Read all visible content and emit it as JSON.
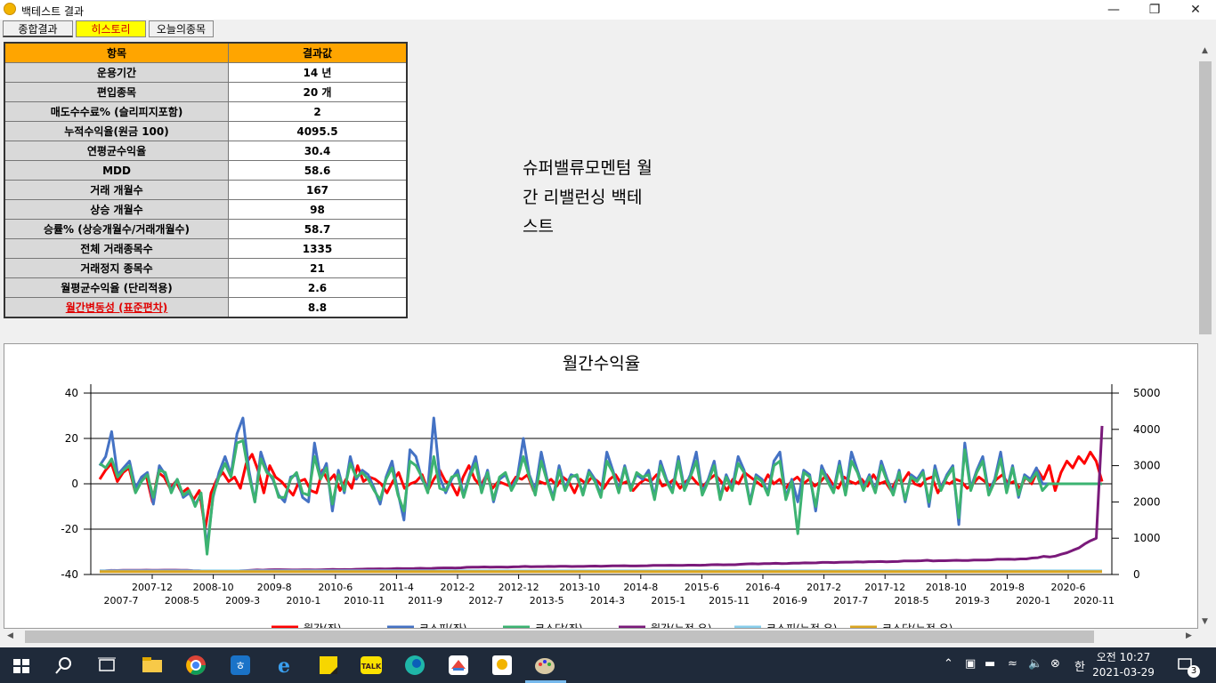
{
  "window": {
    "title": "백테스트 결과"
  },
  "tabs": [
    {
      "label": "종합결과"
    },
    {
      "label": "히스토리"
    },
    {
      "label": "오늘의종목"
    }
  ],
  "summary_table": {
    "headers": [
      "항목",
      "결과값"
    ],
    "rows": [
      {
        "key": "운용기간",
        "value": "14 년"
      },
      {
        "key": "편입종목",
        "value": "20 개"
      },
      {
        "key": "매도수수료% (슬리피지포함)",
        "value": "2"
      },
      {
        "key": "누적수익율(원금 100)",
        "value": "4095.5"
      },
      {
        "key": "연평균수익율",
        "value": "30.4"
      },
      {
        "key": "MDD",
        "value": "58.6"
      },
      {
        "key": "거래 개월수",
        "value": "167"
      },
      {
        "key": "상승 개월수",
        "value": "98"
      },
      {
        "key": "승률% (상승개월수/거래개월수)",
        "value": "58.7"
      },
      {
        "key": "전체 거래종목수",
        "value": "1335"
      },
      {
        "key": "거래정지 종목수",
        "value": "21"
      },
      {
        "key": "월평균수익율 (단리적용)",
        "value": "2.6"
      },
      {
        "key": "월간변동성 (표준편차)",
        "value": "8.8"
      }
    ]
  },
  "description": [
    "슈퍼밸류모멘텀 월",
    "간 리밸런싱 백테",
    "스트"
  ],
  "chart_data": {
    "type": "line",
    "title": "월간수익율",
    "ylim_left": [
      -40,
      40
    ],
    "ylim_right": [
      0,
      5000
    ],
    "left_ticks": [
      "40",
      "20",
      "0",
      "-20",
      "-40"
    ],
    "right_ticks": [
      "5000",
      "4000",
      "3000",
      "2000",
      "1000",
      "0"
    ],
    "x_labels_row1": [
      "2007-12",
      "2008-10",
      "2009-8",
      "2010-6",
      "2011-4",
      "2012-2",
      "2012-12",
      "2013-10",
      "2014-8",
      "2015-6",
      "2016-4",
      "2017-2",
      "2017-12",
      "2018-10",
      "2019-8",
      "2020-6"
    ],
    "x_labels_row2": [
      "2007-7",
      "2008-5",
      "2009-3",
      "2010-1",
      "2010-11",
      "2011-9",
      "2012-7",
      "2013-5",
      "2014-3",
      "2015-1",
      "2015-11",
      "2016-9",
      "2017-7",
      "2018-5",
      "2019-3",
      "2020-1",
      "2020-11"
    ],
    "grid": true,
    "legend_position": "bottom",
    "series": [
      {
        "name": "월간(좌)",
        "axis": "left",
        "color": "#ff0000",
        "values": [
          2,
          6,
          9,
          1,
          5,
          7,
          -3,
          2,
          3,
          -8,
          5,
          3,
          -2,
          1,
          -4,
          -2,
          -7,
          -3,
          -20,
          -4,
          2,
          5,
          1,
          3,
          -2,
          9,
          13,
          6,
          -4,
          8,
          3,
          1,
          -2,
          -5,
          1,
          2,
          -3,
          -4,
          6,
          1,
          4,
          -3,
          2,
          -2,
          8,
          1,
          3,
          2,
          0,
          -4,
          1,
          5,
          -2,
          0,
          1,
          4,
          -3,
          2,
          6,
          1,
          0,
          -5,
          3,
          8,
          2,
          -1,
          4,
          -2,
          1,
          0,
          -1,
          3,
          2,
          4,
          -3,
          1,
          0,
          2,
          -1,
          3,
          1,
          -4,
          2,
          0,
          3,
          1,
          -2,
          2,
          4,
          0,
          1,
          -3,
          0,
          2,
          1,
          4,
          -1,
          0,
          2,
          -2,
          1,
          3,
          0,
          -1,
          2,
          4,
          1,
          -3,
          2,
          0,
          5,
          3,
          1,
          -1,
          4,
          0,
          2,
          -2,
          1,
          3,
          0,
          2,
          -1,
          1,
          4,
          0,
          -2,
          3,
          1,
          0,
          2,
          -1,
          4,
          0,
          1,
          -3,
          2,
          1,
          5,
          0,
          -1,
          2,
          3,
          -4,
          1,
          0,
          2,
          1,
          -2,
          0,
          3,
          1,
          -1,
          2,
          4,
          0,
          1,
          -2,
          3,
          0,
          6,
          2,
          8,
          -3,
          5,
          10,
          7,
          12,
          9,
          14,
          10,
          1
        ]
      },
      {
        "name": "코스피(좌)",
        "axis": "left",
        "color": "#4472c4",
        "values": [
          8,
          12,
          23,
          4,
          7,
          10,
          -2,
          3,
          5,
          -9,
          8,
          4,
          -3,
          2,
          -6,
          -4,
          -9,
          -5,
          -28,
          -6,
          5,
          12,
          4,
          22,
          29,
          6,
          -8,
          14,
          6,
          2,
          -5,
          -8,
          3,
          4,
          -6,
          -8,
          18,
          3,
          9,
          -12,
          6,
          -4,
          12,
          2,
          6,
          4,
          -2,
          -9,
          3,
          10,
          -4,
          -16,
          15,
          12,
          2,
          -2,
          29,
          3,
          -4,
          2,
          6,
          -5,
          4,
          12,
          -3,
          6,
          -8,
          2,
          4,
          -2,
          3,
          20,
          4,
          -3,
          14,
          2,
          -6,
          8,
          -2,
          4,
          3,
          -4,
          6,
          2,
          -5,
          14,
          6,
          -3,
          8,
          -2,
          4,
          2,
          6,
          -6,
          10,
          2,
          -3,
          12,
          -2,
          4,
          14,
          -4,
          2,
          10,
          -6,
          4,
          -2,
          12,
          6,
          -8,
          4,
          2,
          -4,
          10,
          14,
          -6,
          2,
          -8,
          6,
          4,
          -12,
          8,
          2,
          -3,
          10,
          -4,
          14,
          6,
          -2,
          4,
          -3,
          10,
          2,
          -4,
          6,
          -8,
          4,
          2,
          6,
          -10,
          8,
          -2,
          4,
          8,
          -18,
          18,
          -2,
          6,
          12,
          -4,
          2,
          14,
          -3,
          8,
          -6,
          4,
          2,
          7,
          0,
          0,
          0,
          0,
          0,
          0,
          0,
          0,
          0,
          0,
          0
        ]
      },
      {
        "name": "코스닥(좌)",
        "axis": "left",
        "color": "#3cb371",
        "values": [
          9,
          7,
          11,
          3,
          6,
          8,
          -4,
          1,
          4,
          -6,
          6,
          5,
          -4,
          2,
          -5,
          -3,
          -10,
          -4,
          -31,
          -5,
          3,
          9,
          3,
          18,
          19,
          4,
          -8,
          11,
          5,
          3,
          -6,
          -6,
          2,
          5,
          -4,
          -5,
          12,
          2,
          7,
          -9,
          4,
          -3,
          9,
          3,
          5,
          2,
          -3,
          -7,
          2,
          7,
          -5,
          -12,
          10,
          8,
          3,
          -4,
          12,
          -2,
          -3,
          3,
          4,
          -6,
          3,
          9,
          -4,
          5,
          -7,
          3,
          5,
          -3,
          2,
          12,
          3,
          -5,
          10,
          1,
          -7,
          6,
          -3,
          3,
          4,
          -5,
          5,
          1,
          -6,
          10,
          5,
          -4,
          7,
          -3,
          5,
          3,
          4,
          -7,
          8,
          1,
          -4,
          10,
          -3,
          3,
          10,
          -5,
          1,
          8,
          -7,
          3,
          -3,
          9,
          5,
          -9,
          3,
          1,
          -5,
          8,
          10,
          -7,
          1,
          -22,
          5,
          3,
          -10,
          6,
          1,
          -4,
          8,
          -5,
          10,
          5,
          -3,
          3,
          -4,
          8,
          1,
          -5,
          5,
          -7,
          3,
          1,
          5,
          -8,
          6,
          -3,
          3,
          7,
          -15,
          15,
          -3,
          5,
          10,
          -5,
          1,
          11,
          -4,
          7,
          -5,
          3,
          1,
          5,
          -3,
          0,
          0,
          0,
          0,
          0,
          0,
          0,
          0,
          0,
          0
        ]
      },
      {
        "name": "월간(누적,우)",
        "axis": "right",
        "color": "#7a1a7a",
        "values": [
          100,
          104,
          112,
          110,
          114,
          118,
          116,
          118,
          121,
          114,
          118,
          121,
          119,
          120,
          116,
          114,
          108,
          105,
          90,
          88,
          90,
          94,
          95,
          97,
          100,
          108,
          118,
          124,
          120,
          128,
          132,
          133,
          131,
          126,
          126,
          128,
          130,
          125,
          131,
          135,
          140,
          136,
          138,
          136,
          144,
          148,
          152,
          155,
          156,
          152,
          156,
          165,
          162,
          162,
          165,
          171,
          166,
          170,
          180,
          182,
          182,
          178,
          184,
          198,
          202,
          200,
          208,
          204,
          206,
          206,
          204,
          210,
          214,
          222,
          216,
          218,
          218,
          222,
          220,
          226,
          228,
          220,
          224,
          224,
          230,
          232,
          228,
          232,
          240,
          240,
          242,
          236,
          236,
          240,
          242,
          252,
          250,
          250,
          254,
          250,
          252,
          258,
          258,
          256,
          260,
          270,
          272,
          266,
          270,
          270,
          283,
          292,
          296,
          292,
          302,
          302,
          308,
          302,
          305,
          314,
          314,
          320,
          318,
          321,
          334,
          334,
          328,
          338,
          341,
          341,
          348,
          344,
          354,
          354,
          358,
          348,
          355,
          359,
          376,
          376,
          372,
          380,
          392,
          376,
          380,
          380,
          388,
          392,
          384,
          384,
          396,
          400,
          396,
          404,
          420,
          420,
          424,
          416,
          428,
          428,
          454,
          464,
          500,
          484,
          508,
          560,
          600,
          670,
          730,
          840,
          928,
          1000,
          4095
        ]
      },
      {
        "name": "코스피(누적,우)",
        "axis": "right",
        "color": "#87ceeb",
        "values": []
      },
      {
        "name": "코스닥(누적,우)",
        "axis": "right",
        "color": "#daa520",
        "values": []
      }
    ]
  },
  "taskbar": {
    "ime": "한",
    "clock_time": "오전 10:27",
    "clock_date": "2021-03-29",
    "notification_count": "3"
  }
}
